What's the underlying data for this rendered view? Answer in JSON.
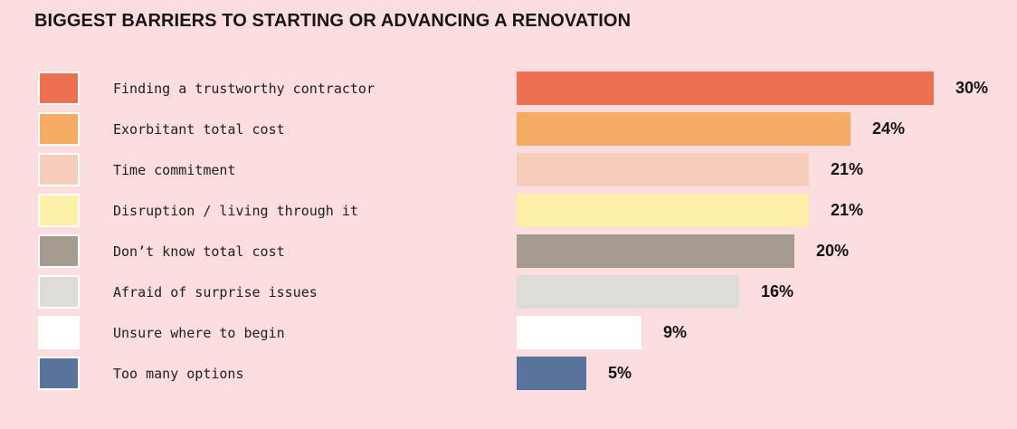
{
  "chart_data": {
    "type": "bar",
    "orientation": "horizontal",
    "title": "BIGGEST BARRIERS TO STARTING OR ADVANCING A RENOVATION",
    "categories": [
      "Finding a trustworthy contractor",
      "Exorbitant total cost",
      "Time commitment",
      "Disruption / living through it",
      "Don’t know total cost",
      "Afraid of surprise issues",
      "Unsure where to begin",
      "Too many options"
    ],
    "values": [
      30,
      24,
      21,
      21,
      20,
      16,
      9,
      5
    ],
    "value_labels": [
      "30%",
      "24%",
      "21%",
      "21%",
      "20%",
      "16%",
      "9%",
      "5%"
    ],
    "bar_colors": [
      "#ED7052",
      "#F5AB64",
      "#F6CCBB",
      "#FEEFA7",
      "#A49B91",
      "#DEDCD7",
      "#FFFFFF",
      "#59749C"
    ],
    "value_range": [
      0,
      30
    ],
    "data_labels": true,
    "legend_position": "left",
    "grid": false,
    "xlabel": "",
    "ylabel": "",
    "colors": {
      "background": "#FBDCDF",
      "title_text": "#161616",
      "label_text": "#202020",
      "swatch_border": "#FFFFFF"
    }
  }
}
